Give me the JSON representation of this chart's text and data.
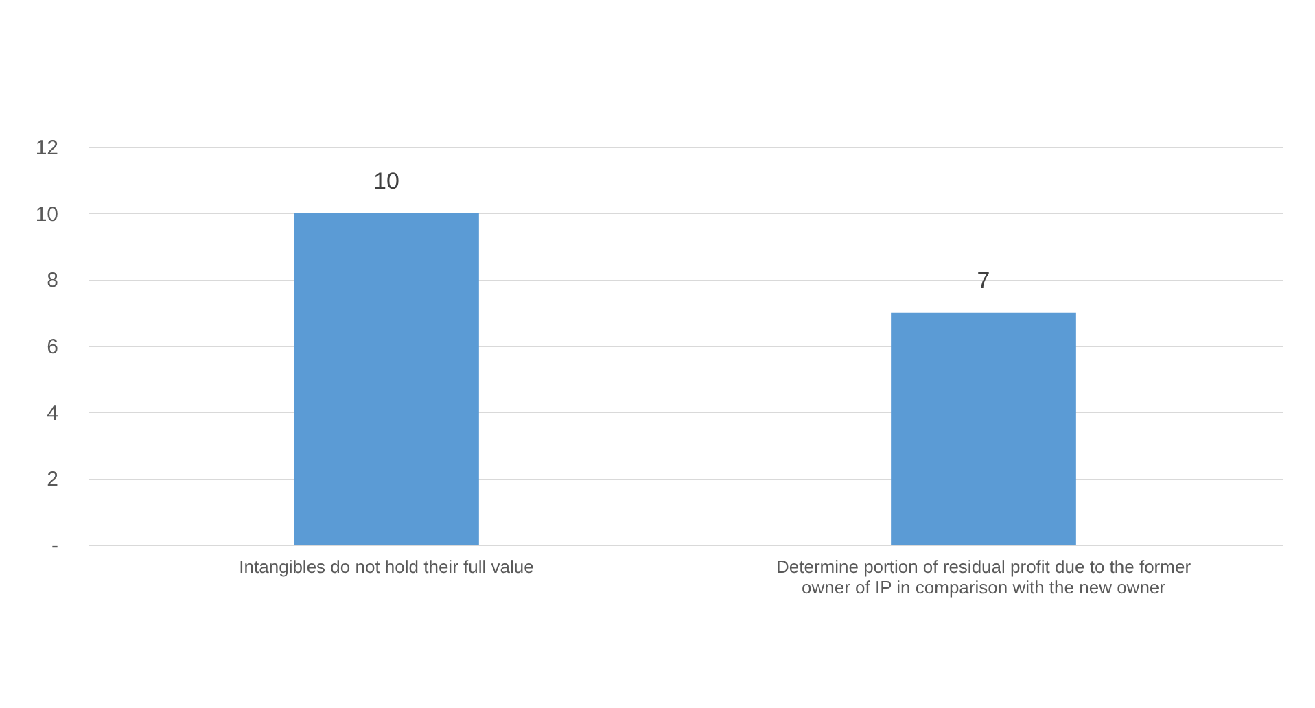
{
  "chart_data": {
    "type": "bar",
    "categories": [
      "Intangibles do not hold their full value",
      "Determine portion of residual profit due to the former owner of IP in comparison with the new owner"
    ],
    "values": [
      10,
      7
    ],
    "color": "#5b9bd5",
    "ylim": [
      0,
      12
    ],
    "yticks": [
      {
        "value": 0,
        "label": "-"
      },
      2,
      4,
      6,
      8,
      10,
      12
    ],
    "grid": "y",
    "data_labels": true
  }
}
